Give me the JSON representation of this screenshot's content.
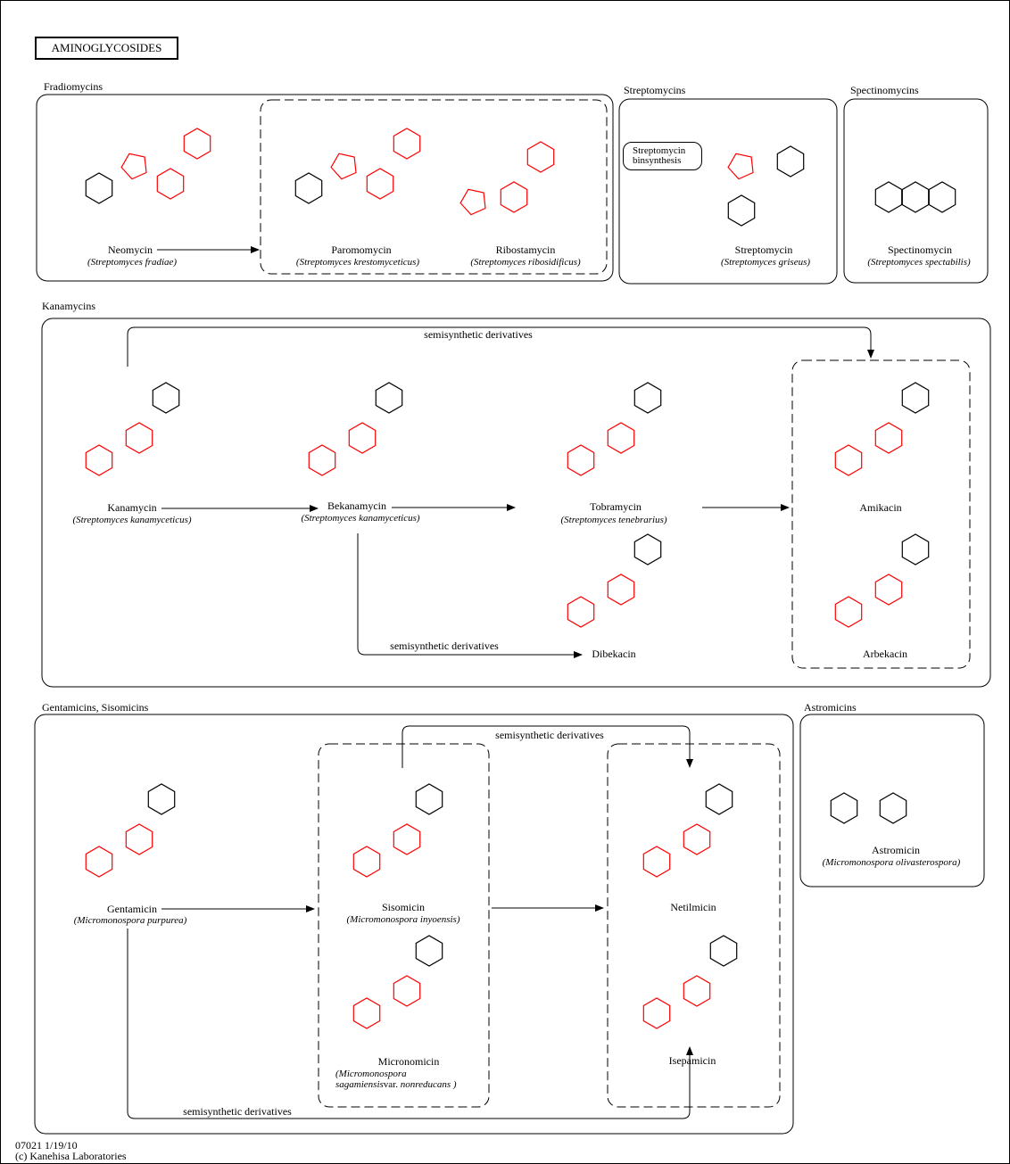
{
  "title": "AMINOGLYCOSIDES",
  "groups": {
    "fradiomycins": "Fradiomycins",
    "streptomycins": "Streptomycins",
    "spectinomycins": "Spectinomycins",
    "kanamycins": "Kanamycins",
    "gentamicins": "Gentamicins, Sisomicins",
    "astromicins": "Astromicins"
  },
  "streptomycin_biosynthesis": "Streptomycin binsynthesis",
  "semisynthetic_label": "semisynthetic derivatives",
  "compounds": {
    "neomycin": {
      "name": "Neomycin",
      "organism": "(Streptomyces fradiae)"
    },
    "paromomycin": {
      "name": "Paromomycin",
      "organism": "(Streptomyces krestomyceticus)"
    },
    "ribostamycin": {
      "name": "Ribostamycin",
      "organism": "(Streptomyces ribosidificus)"
    },
    "streptomycin": {
      "name": "Streptomycin",
      "organism": "(Streptomyces griseus)"
    },
    "spectinomycin": {
      "name": "Spectinomycin",
      "organism": "(Streptomyces spectabilis)"
    },
    "kanamycin": {
      "name": "Kanamycin",
      "organism": "(Streptomyces kanamyceticus)"
    },
    "bekanamycin": {
      "name": "Bekanamycin",
      "organism": "(Streptomyces kanamyceticus)"
    },
    "tobramycin": {
      "name": "Tobramycin",
      "organism": "(Streptomyces tenebrarius)"
    },
    "dibekacin": {
      "name": "Dibekacin"
    },
    "amikacin": {
      "name": "Amikacin"
    },
    "arbekacin": {
      "name": "Arbekacin"
    },
    "gentamicin": {
      "name": "Gentamicin",
      "organism": "(Micromonospora purpurea)"
    },
    "sisomicin": {
      "name": "Sisomicin",
      "organism": "(Micromonospora inyoensis)"
    },
    "micronomicin": {
      "name": "Micronomicin",
      "organism_line1": "(Micromonospora",
      "organism_line2a": "sagamiensis",
      "organism_line2b": "var.",
      "organism_line2c": " nonreducans )"
    },
    "netilmicin": {
      "name": "Netilmicin"
    },
    "isepamicin": {
      "name": "Isepamicin"
    },
    "astromicin": {
      "name": "Astromicin",
      "organism": "(Micromonospora olivasterospora)"
    }
  },
  "colors": {
    "core": "#ff0000",
    "other": "#000000"
  },
  "footer": {
    "id_date": "07021 1/19/10",
    "copyright": "(c) Kanehisa Laboratories"
  }
}
